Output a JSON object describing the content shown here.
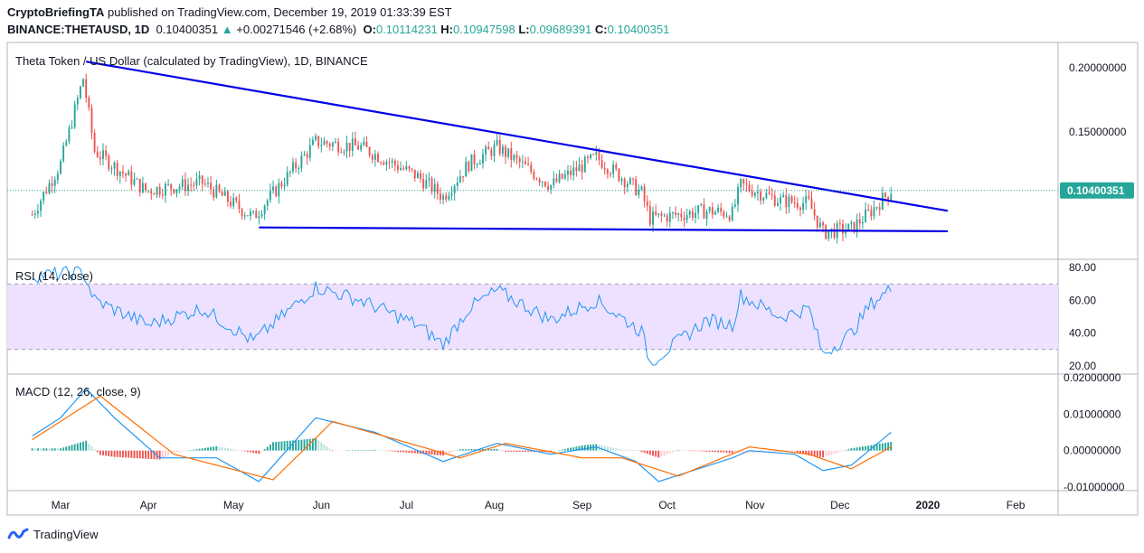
{
  "header": {
    "publisher": "CryptoBriefingTA",
    "published_text": "published on TradingView.com, December 19, 2019 01:33:39 EST",
    "symbol": "BINANCE:THETAUSD, 1D",
    "last": "0.10400351",
    "change": "+0.00271546 (+2.68%)",
    "ohlc": [
      {
        "label": "O:",
        "value": "0.10114231"
      },
      {
        "label": "H:",
        "value": "0.10947598"
      },
      {
        "label": "L:",
        "value": "0.09689391"
      },
      {
        "label": "C:",
        "value": "0.10400351"
      }
    ]
  },
  "colors": {
    "up": "#26a69a",
    "down": "#ef5350",
    "trendline": "#0000e6",
    "rsi_line": "#2196f3",
    "rsi_band": "#ede1ff",
    "macd_line": "#2196f3",
    "signal_line": "#ff6d00",
    "price_tag": "#26a69a"
  },
  "footer": {
    "brand": "TradingView"
  },
  "chart_data": [
    {
      "type": "candlestick",
      "title": "Theta Token / US Dollar (calculated by TradingView), 1D, BINANCE",
      "x_ticks": [
        "Mar",
        "Apr",
        "May",
        "Jun",
        "Jul",
        "Aug",
        "Sep",
        "Oct",
        "Nov",
        "Dec",
        "2020",
        "Feb"
      ],
      "y_ticks": [
        "0.20000000",
        "0.15000000"
      ],
      "ylim": [
        0.05,
        0.22
      ],
      "last_price_label": "0.10400351",
      "last_price": 0.104,
      "key_points": [
        {
          "date": "2019-02-19",
          "close": 0.085
        },
        {
          "date": "2019-03-01",
          "close": 0.125
        },
        {
          "date": "2019-03-09",
          "close": 0.192
        },
        {
          "date": "2019-03-13",
          "close": 0.135
        },
        {
          "date": "2019-03-31",
          "close": 0.104
        },
        {
          "date": "2019-04-20",
          "close": 0.11
        },
        {
          "date": "2019-05-08",
          "close": 0.083
        },
        {
          "date": "2019-05-30",
          "close": 0.142
        },
        {
          "date": "2019-06-15",
          "close": 0.138
        },
        {
          "date": "2019-07-05",
          "close": 0.115
        },
        {
          "date": "2019-07-14",
          "close": 0.099
        },
        {
          "date": "2019-07-23",
          "close": 0.125
        },
        {
          "date": "2019-08-02",
          "close": 0.138
        },
        {
          "date": "2019-08-21",
          "close": 0.108
        },
        {
          "date": "2019-09-06",
          "close": 0.13
        },
        {
          "date": "2019-09-22",
          "close": 0.102
        },
        {
          "date": "2019-09-25",
          "close": 0.082
        },
        {
          "date": "2019-10-15",
          "close": 0.088
        },
        {
          "date": "2019-10-24",
          "close": 0.086
        },
        {
          "date": "2019-10-27",
          "close": 0.108
        },
        {
          "date": "2019-11-10",
          "close": 0.096
        },
        {
          "date": "2019-11-20",
          "close": 0.094
        },
        {
          "date": "2019-11-25",
          "close": 0.071
        },
        {
          "date": "2019-12-05",
          "close": 0.074
        },
        {
          "date": "2019-12-12",
          "close": 0.088
        },
        {
          "date": "2019-12-19",
          "close": 0.104
        }
      ],
      "trendlines": [
        {
          "name": "",
          "from": {
            "date": "2019-03-10",
            "value": 0.205
          },
          "to": {
            "date": "2020-01-08",
            "value": 0.088
          }
        },
        {
          "name": "",
          "from": {
            "date": "2019-05-10",
            "value": 0.075
          },
          "to": {
            "date": "2020-01-08",
            "value": 0.072
          }
        }
      ]
    },
    {
      "type": "line",
      "title": "RSI (14, close)",
      "y_ticks": [
        "80.00",
        "60.00",
        "40.00",
        "20.00"
      ],
      "ylim": [
        15,
        85
      ],
      "band": [
        30,
        70
      ],
      "key_points": [
        {
          "date": "2019-02-19",
          "value": 75
        },
        {
          "date": "2019-03-09",
          "value": 77
        },
        {
          "date": "2019-03-13",
          "value": 60
        },
        {
          "date": "2019-04-01",
          "value": 45
        },
        {
          "date": "2019-04-20",
          "value": 55
        },
        {
          "date": "2019-05-08",
          "value": 35
        },
        {
          "date": "2019-05-30",
          "value": 68
        },
        {
          "date": "2019-06-15",
          "value": 60
        },
        {
          "date": "2019-07-05",
          "value": 45
        },
        {
          "date": "2019-07-14",
          "value": 33
        },
        {
          "date": "2019-07-23",
          "value": 55
        },
        {
          "date": "2019-08-02",
          "value": 66
        },
        {
          "date": "2019-08-21",
          "value": 48
        },
        {
          "date": "2019-09-06",
          "value": 60
        },
        {
          "date": "2019-09-22",
          "value": 41
        },
        {
          "date": "2019-09-25",
          "value": 22
        },
        {
          "date": "2019-10-15",
          "value": 48
        },
        {
          "date": "2019-10-24",
          "value": 45
        },
        {
          "date": "2019-10-27",
          "value": 63
        },
        {
          "date": "2019-11-10",
          "value": 50
        },
        {
          "date": "2019-11-20",
          "value": 55
        },
        {
          "date": "2019-11-25",
          "value": 27
        },
        {
          "date": "2019-12-05",
          "value": 40
        },
        {
          "date": "2019-12-12",
          "value": 58
        },
        {
          "date": "2019-12-19",
          "value": 67
        }
      ]
    },
    {
      "type": "bar+line",
      "title": "MACD (12, 26, close, 9)",
      "y_ticks": [
        "0.02000000",
        "0.01000000",
        "0.00000000",
        "-0.01000000"
      ],
      "ylim": [
        -0.011,
        0.021
      ],
      "macd_key_points": [
        {
          "date": "2019-02-19",
          "value": 0.004
        },
        {
          "date": "2019-03-01",
          "value": 0.009
        },
        {
          "date": "2019-03-10",
          "value": 0.017
        },
        {
          "date": "2019-03-20",
          "value": 0.009
        },
        {
          "date": "2019-04-05",
          "value": -0.002
        },
        {
          "date": "2019-04-25",
          "value": -0.002
        },
        {
          "date": "2019-05-10",
          "value": -0.0085
        },
        {
          "date": "2019-05-30",
          "value": 0.009
        },
        {
          "date": "2019-06-20",
          "value": 0.005
        },
        {
          "date": "2019-07-14",
          "value": -0.003
        },
        {
          "date": "2019-08-02",
          "value": 0.002
        },
        {
          "date": "2019-08-21",
          "value": -0.001
        },
        {
          "date": "2019-09-06",
          "value": 0.001
        },
        {
          "date": "2019-09-20",
          "value": -0.003
        },
        {
          "date": "2019-09-28",
          "value": -0.0085
        },
        {
          "date": "2019-10-24",
          "value": -0.002
        },
        {
          "date": "2019-10-30",
          "value": 0.0
        },
        {
          "date": "2019-11-15",
          "value": -0.001
        },
        {
          "date": "2019-11-25",
          "value": -0.0055
        },
        {
          "date": "2019-12-05",
          "value": -0.004
        },
        {
          "date": "2019-12-19",
          "value": 0.005
        }
      ],
      "signal_key_points": [
        {
          "date": "2019-02-19",
          "value": 0.003
        },
        {
          "date": "2019-03-15",
          "value": 0.015
        },
        {
          "date": "2019-04-10",
          "value": -0.001
        },
        {
          "date": "2019-05-15",
          "value": -0.008
        },
        {
          "date": "2019-06-05",
          "value": 0.008
        },
        {
          "date": "2019-07-20",
          "value": -0.002
        },
        {
          "date": "2019-08-05",
          "value": 0.002
        },
        {
          "date": "2019-09-01",
          "value": -0.002
        },
        {
          "date": "2019-09-15",
          "value": -0.002
        },
        {
          "date": "2019-10-05",
          "value": -0.007
        },
        {
          "date": "2019-10-30",
          "value": 0.001
        },
        {
          "date": "2019-11-20",
          "value": -0.001
        },
        {
          "date": "2019-12-05",
          "value": -0.005
        },
        {
          "date": "2019-12-19",
          "value": 0.001
        }
      ]
    }
  ]
}
